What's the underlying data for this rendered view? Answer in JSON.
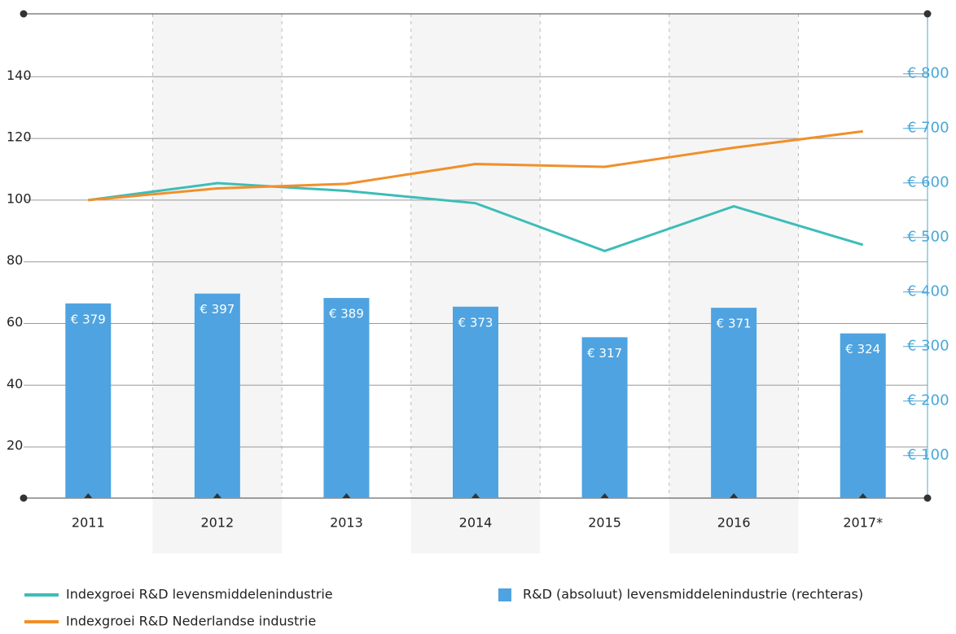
{
  "chart_data": {
    "type": "bar_line",
    "categories": [
      "2011",
      "2012",
      "2013",
      "2014",
      "2015",
      "2016",
      "2017*"
    ],
    "ylim": [
      3.4,
      160.4
    ],
    "yticks": [
      20,
      40,
      60,
      80,
      100,
      120,
      140
    ],
    "y2lim": [
      22,
      910
    ],
    "y2ticks": [
      {
        "value": 100,
        "label": "€ 100"
      },
      {
        "value": 200,
        "label": "€ 200"
      },
      {
        "value": 300,
        "label": "€ 300"
      },
      {
        "value": 400,
        "label": "€ 400"
      },
      {
        "value": 500,
        "label": "€ 500"
      },
      {
        "value": 600,
        "label": "€ 600"
      },
      {
        "value": 700,
        "label": "€ 700"
      },
      {
        "value": 800,
        "label": "€ 800"
      }
    ],
    "grid": true,
    "series": [
      {
        "name": "Indexgroei R&D levensmiddelenindustrie",
        "type": "line",
        "color": "#3dbdb8",
        "values": [
          100,
          105.5,
          103,
          99,
          83.5,
          98,
          85.5
        ]
      },
      {
        "name": "Indexgroei R&D Nederlandse industrie",
        "type": "line",
        "color": "#f0902a",
        "values": [
          100,
          103.8,
          105.3,
          111.7,
          110.8,
          117,
          122.3
        ]
      },
      {
        "name": "R&D (absoluut) levensmiddelenindustrie (rechteras)",
        "type": "bar",
        "axis": "y2",
        "color": "#4fa3e0",
        "values": [
          379,
          397,
          389,
          373,
          317,
          371,
          324
        ],
        "value_labels": [
          "€ 379",
          "€ 397",
          "€ 389",
          "€ 373",
          "€ 317",
          "€ 371",
          "€ 324"
        ]
      }
    ]
  }
}
